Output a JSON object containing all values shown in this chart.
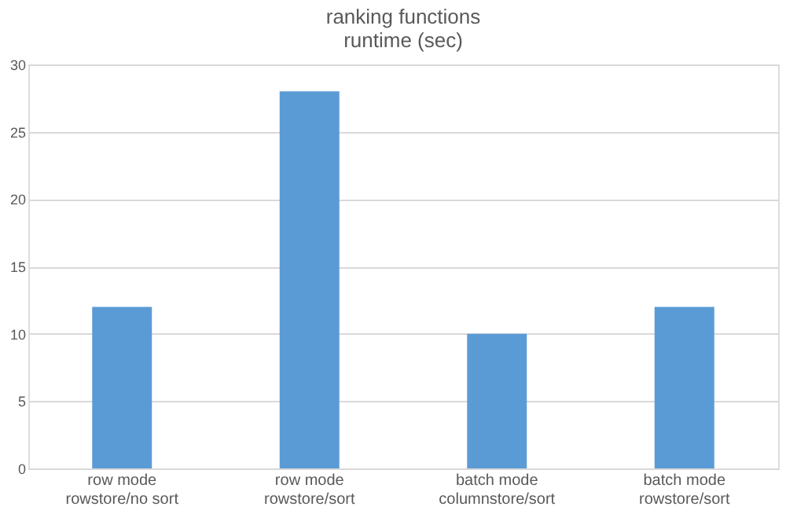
{
  "chart_data": {
    "type": "bar",
    "title": "ranking functions\nruntime (sec)",
    "categories": [
      "row mode\nrowstore/no sort",
      "row mode\nrowstore/sort",
      "batch mode\ncolumnstore/sort",
      "batch mode\nrowstore/sort"
    ],
    "values": [
      12,
      28,
      10,
      12
    ],
    "color": "#5b9bd5",
    "ylim": [
      0,
      30
    ],
    "yticks": [
      0,
      5,
      10,
      15,
      20,
      25,
      30
    ],
    "grid": "y"
  }
}
